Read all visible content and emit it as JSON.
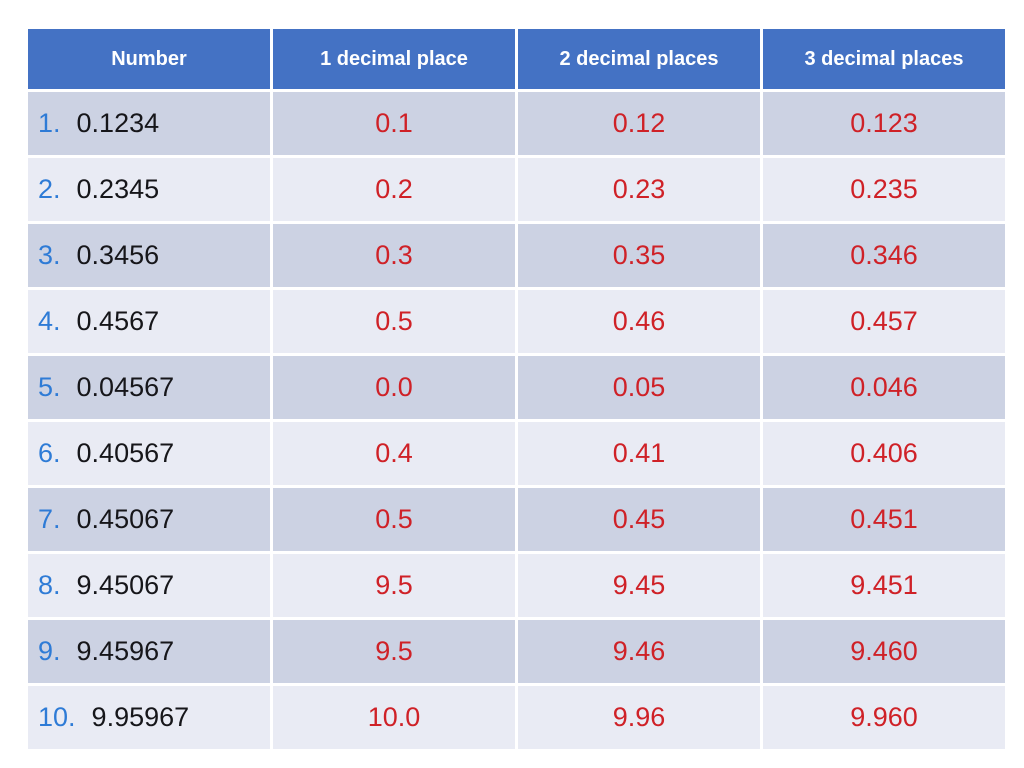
{
  "table": {
    "headers": [
      "Number",
      "1 decimal place",
      "2 decimal places",
      "3 decimal places"
    ],
    "rows": [
      {
        "index": "1.",
        "number": "0.1234",
        "dp1": "0.1",
        "dp2": "0.12",
        "dp3": "0.123"
      },
      {
        "index": "2.",
        "number": "0.2345",
        "dp1": "0.2",
        "dp2": "0.23",
        "dp3": "0.235"
      },
      {
        "index": "3.",
        "number": "0.3456",
        "dp1": "0.3",
        "dp2": "0.35",
        "dp3": "0.346"
      },
      {
        "index": "4.",
        "number": "0.4567",
        "dp1": "0.5",
        "dp2": "0.46",
        "dp3": "0.457"
      },
      {
        "index": "5.",
        "number": "0.04567",
        "dp1": "0.0",
        "dp2": "0.05",
        "dp3": "0.046"
      },
      {
        "index": "6.",
        "number": "0.40567",
        "dp1": "0.4",
        "dp2": "0.41",
        "dp3": "0.406"
      },
      {
        "index": "7.",
        "number": "0.45067",
        "dp1": "0.5",
        "dp2": "0.45",
        "dp3": "0.451"
      },
      {
        "index": "8.",
        "number": "9.45067",
        "dp1": "9.5",
        "dp2": "9.45",
        "dp3": "9.451"
      },
      {
        "index": "9.",
        "number": "9.45967",
        "dp1": "9.5",
        "dp2": "9.46",
        "dp3": "9.460"
      },
      {
        "index": "10.",
        "number": "9.95967",
        "dp1": "10.0",
        "dp2": "9.96",
        "dp3": "9.960"
      }
    ]
  },
  "chart_data": {
    "type": "table",
    "columns": [
      "Number",
      "1 decimal place",
      "2 decimal places",
      "3 decimal places"
    ],
    "rows": [
      [
        "0.1234",
        "0.1",
        "0.12",
        "0.123"
      ],
      [
        "0.2345",
        "0.2",
        "0.23",
        "0.235"
      ],
      [
        "0.3456",
        "0.3",
        "0.35",
        "0.346"
      ],
      [
        "0.4567",
        "0.5",
        "0.46",
        "0.457"
      ],
      [
        "0.04567",
        "0.0",
        "0.05",
        "0.046"
      ],
      [
        "0.40567",
        "0.4",
        "0.41",
        "0.406"
      ],
      [
        "0.45067",
        "0.5",
        "0.45",
        "0.451"
      ],
      [
        "9.45067",
        "9.5",
        "9.45",
        "9.451"
      ],
      [
        "9.45967",
        "9.5",
        "9.46",
        "9.460"
      ],
      [
        "9.95967",
        "10.0",
        "9.96",
        "9.960"
      ]
    ]
  },
  "colors": {
    "page_bg": "#ffffff",
    "header_bg": "#4472c4",
    "header_text": "#ffffff",
    "row_odd": "#ccd2e3",
    "row_even": "#e9ebf4",
    "index_blue": "#2e7bd6",
    "number_black": "#16161a",
    "value_red": "#cf2127"
  }
}
